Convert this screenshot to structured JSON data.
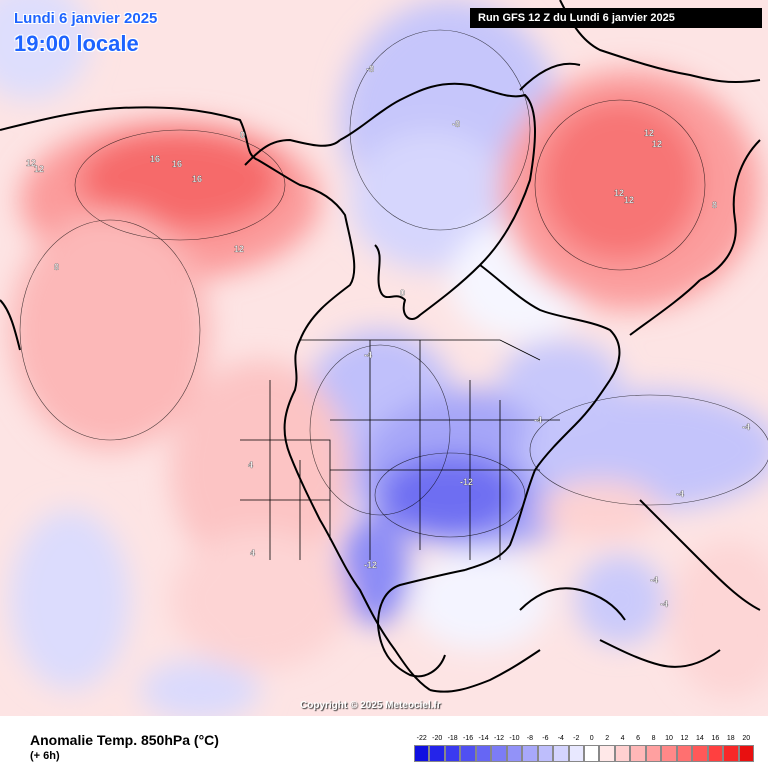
{
  "header": {
    "date": "Lundi 6 janvier 2025",
    "time": "19:00 locale",
    "run": "Run GFS 12 Z du Lundi 6 janvier 2025"
  },
  "footer": {
    "variable": "Anomalie Temp. 850hPa (°C)",
    "lead": "(+ 6h)",
    "copyright": "Copyright © 2025 Meteociel.fr"
  },
  "scale": {
    "labels": [
      "-22",
      "-20",
      "-18",
      "-16",
      "-14",
      "-12",
      "-10",
      "-8",
      "-6",
      "-4",
      "-2",
      "0",
      "2",
      "4",
      "6",
      "8",
      "10",
      "12",
      "14",
      "16",
      "18",
      "20"
    ],
    "colors": [
      "#1010e0",
      "#2424ea",
      "#3a3af0",
      "#5050f2",
      "#6666f4",
      "#7c7cf6",
      "#9292f8",
      "#a8a8fa",
      "#bebefc",
      "#d4d4fe",
      "#e8e8ff",
      "#ffffff",
      "#ffe8e8",
      "#ffd0d0",
      "#ffb8b8",
      "#ffa0a0",
      "#ff8888",
      "#ff7070",
      "#ff5858",
      "#ff4040",
      "#f82828",
      "#e81010"
    ]
  },
  "contour_labels": [
    {
      "text": "12",
      "x": -150,
      "y": 68
    },
    {
      "text": "12",
      "x": -148,
      "y": 67
    },
    {
      "text": "16",
      "x": -136,
      "y": 66
    },
    {
      "text": "16",
      "x": -132,
      "y": 65
    },
    {
      "text": "16",
      "x": -128,
      "y": 63
    },
    {
      "text": "12",
      "x": -128,
      "y": 60
    },
    {
      "text": "12",
      "x": -20,
      "y": 68
    },
    {
      "text": "12",
      "x": -18,
      "y": 67
    },
    {
      "text": "12",
      "x": -22,
      "y": 62
    },
    {
      "text": "12",
      "x": -20,
      "y": 61
    },
    {
      "text": "-12",
      "x": -85,
      "y": 37
    },
    {
      "text": "-12",
      "x": -100,
      "y": 27
    },
    {
      "text": "-4",
      "x": -96,
      "y": 47
    },
    {
      "text": "-4",
      "x": -75,
      "y": 43
    },
    {
      "text": "-4",
      "x": -50,
      "y": 33
    },
    {
      "text": "-4",
      "x": -38,
      "y": 33
    },
    {
      "text": "-4",
      "x": -60,
      "y": 22
    },
    {
      "text": "-4",
      "x": -55,
      "y": 18
    },
    {
      "text": "-8",
      "x": -82,
      "y": 72
    },
    {
      "text": "-8",
      "x": -75,
      "y": 70
    },
    {
      "text": "8",
      "x": -40,
      "y": 62
    },
    {
      "text": "8",
      "x": -160,
      "y": 52
    },
    {
      "text": "4",
      "x": -120,
      "y": 40
    },
    {
      "text": "4",
      "x": -115,
      "y": 25
    },
    {
      "text": "0",
      "x": -95,
      "y": 58
    },
    {
      "text": "0",
      "x": -110,
      "y": 65
    }
  ]
}
